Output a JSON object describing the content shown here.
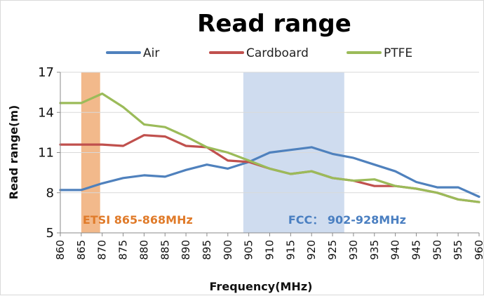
{
  "chart_data": {
    "type": "line",
    "title": "Read range",
    "xlabel": "Frequency(MHz)",
    "ylabel": "Read range(m)",
    "ylim": [
      5,
      17
    ],
    "y_ticks": [
      "5",
      "8",
      "11",
      "14",
      "17"
    ],
    "x": [
      860,
      865,
      870,
      875,
      880,
      885,
      890,
      895,
      900,
      905,
      910,
      915,
      920,
      925,
      930,
      935,
      940,
      945,
      950,
      955,
      960
    ],
    "x_ticks": [
      "860",
      "865",
      "870",
      "875",
      "880",
      "885",
      "890",
      "895",
      "900",
      "905",
      "910",
      "915",
      "920",
      "925",
      "930",
      "935",
      "940",
      "945",
      "950",
      "955",
      "960"
    ],
    "grid": "horizontal",
    "legend_position": "top",
    "series": [
      {
        "name": "Air",
        "color": "#4f81bd",
        "values": [
          8.2,
          8.2,
          8.7,
          9.1,
          9.3,
          9.2,
          9.7,
          10.1,
          9.8,
          10.3,
          11.0,
          11.2,
          11.4,
          10.9,
          10.6,
          10.1,
          9.6,
          8.8,
          8.4,
          8.4,
          7.7
        ]
      },
      {
        "name": "Cardboard",
        "color": "#c0504d",
        "values": [
          11.6,
          11.6,
          11.6,
          11.5,
          12.3,
          12.2,
          11.5,
          11.4,
          10.4,
          10.3,
          9.8,
          9.4,
          9.6,
          9.1,
          8.9,
          8.5,
          8.5,
          8.3,
          8.0,
          7.5,
          7.3
        ]
      },
      {
        "name": "PTFE",
        "color": "#9bbb59",
        "values": [
          14.7,
          14.7,
          15.4,
          14.4,
          13.1,
          12.9,
          12.2,
          11.4,
          11.0,
          10.4,
          9.8,
          9.4,
          9.6,
          9.1,
          8.9,
          9.0,
          8.5,
          8.3,
          8.0,
          7.5,
          7.3
        ]
      }
    ],
    "bands": [
      {
        "label": "ETSI 865-868MHz",
        "from": 865,
        "to": 869.5,
        "fill": "#f2b98b",
        "text_color": "#e07b2a"
      },
      {
        "label": "FCC：  902-928MHz",
        "from": 903.7,
        "to": 927.8,
        "fill": "#cfdcef",
        "text_color": "#4a7fc1"
      }
    ]
  }
}
